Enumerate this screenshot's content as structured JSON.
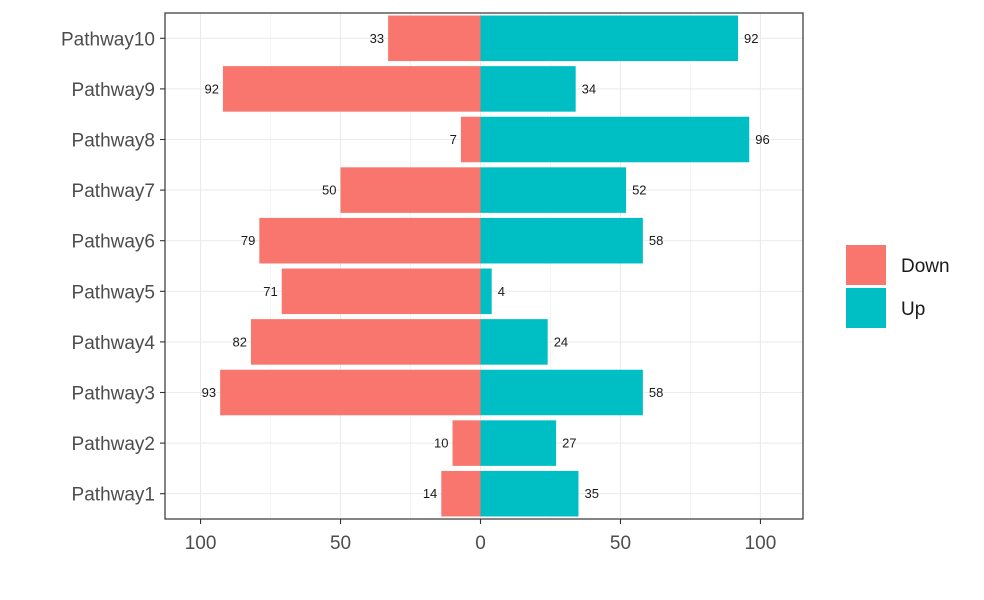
{
  "chart_data": {
    "type": "bar",
    "orientation": "horizontal",
    "diverging": true,
    "categories": [
      "Pathway1",
      "Pathway2",
      "Pathway3",
      "Pathway4",
      "Pathway5",
      "Pathway6",
      "Pathway7",
      "Pathway8",
      "Pathway9",
      "Pathway10"
    ],
    "series": [
      {
        "name": "Down",
        "direction": "left",
        "color": "#F8766D",
        "values": [
          14,
          10,
          93,
          82,
          71,
          79,
          50,
          7,
          92,
          33
        ]
      },
      {
        "name": "Up",
        "direction": "right",
        "color": "#00BFC4",
        "values": [
          35,
          27,
          58,
          24,
          4,
          58,
          52,
          96,
          34,
          92
        ]
      }
    ],
    "x_ticks": [
      -100,
      -50,
      0,
      50,
      100
    ],
    "x_tick_labels": [
      "100",
      "50",
      "0",
      "50",
      "100"
    ],
    "xlim": [
      -112.7,
      115.2
    ],
    "grid": true,
    "legend_position": "right",
    "legend_title": "",
    "title": "",
    "xlabel": "",
    "ylabel": ""
  }
}
